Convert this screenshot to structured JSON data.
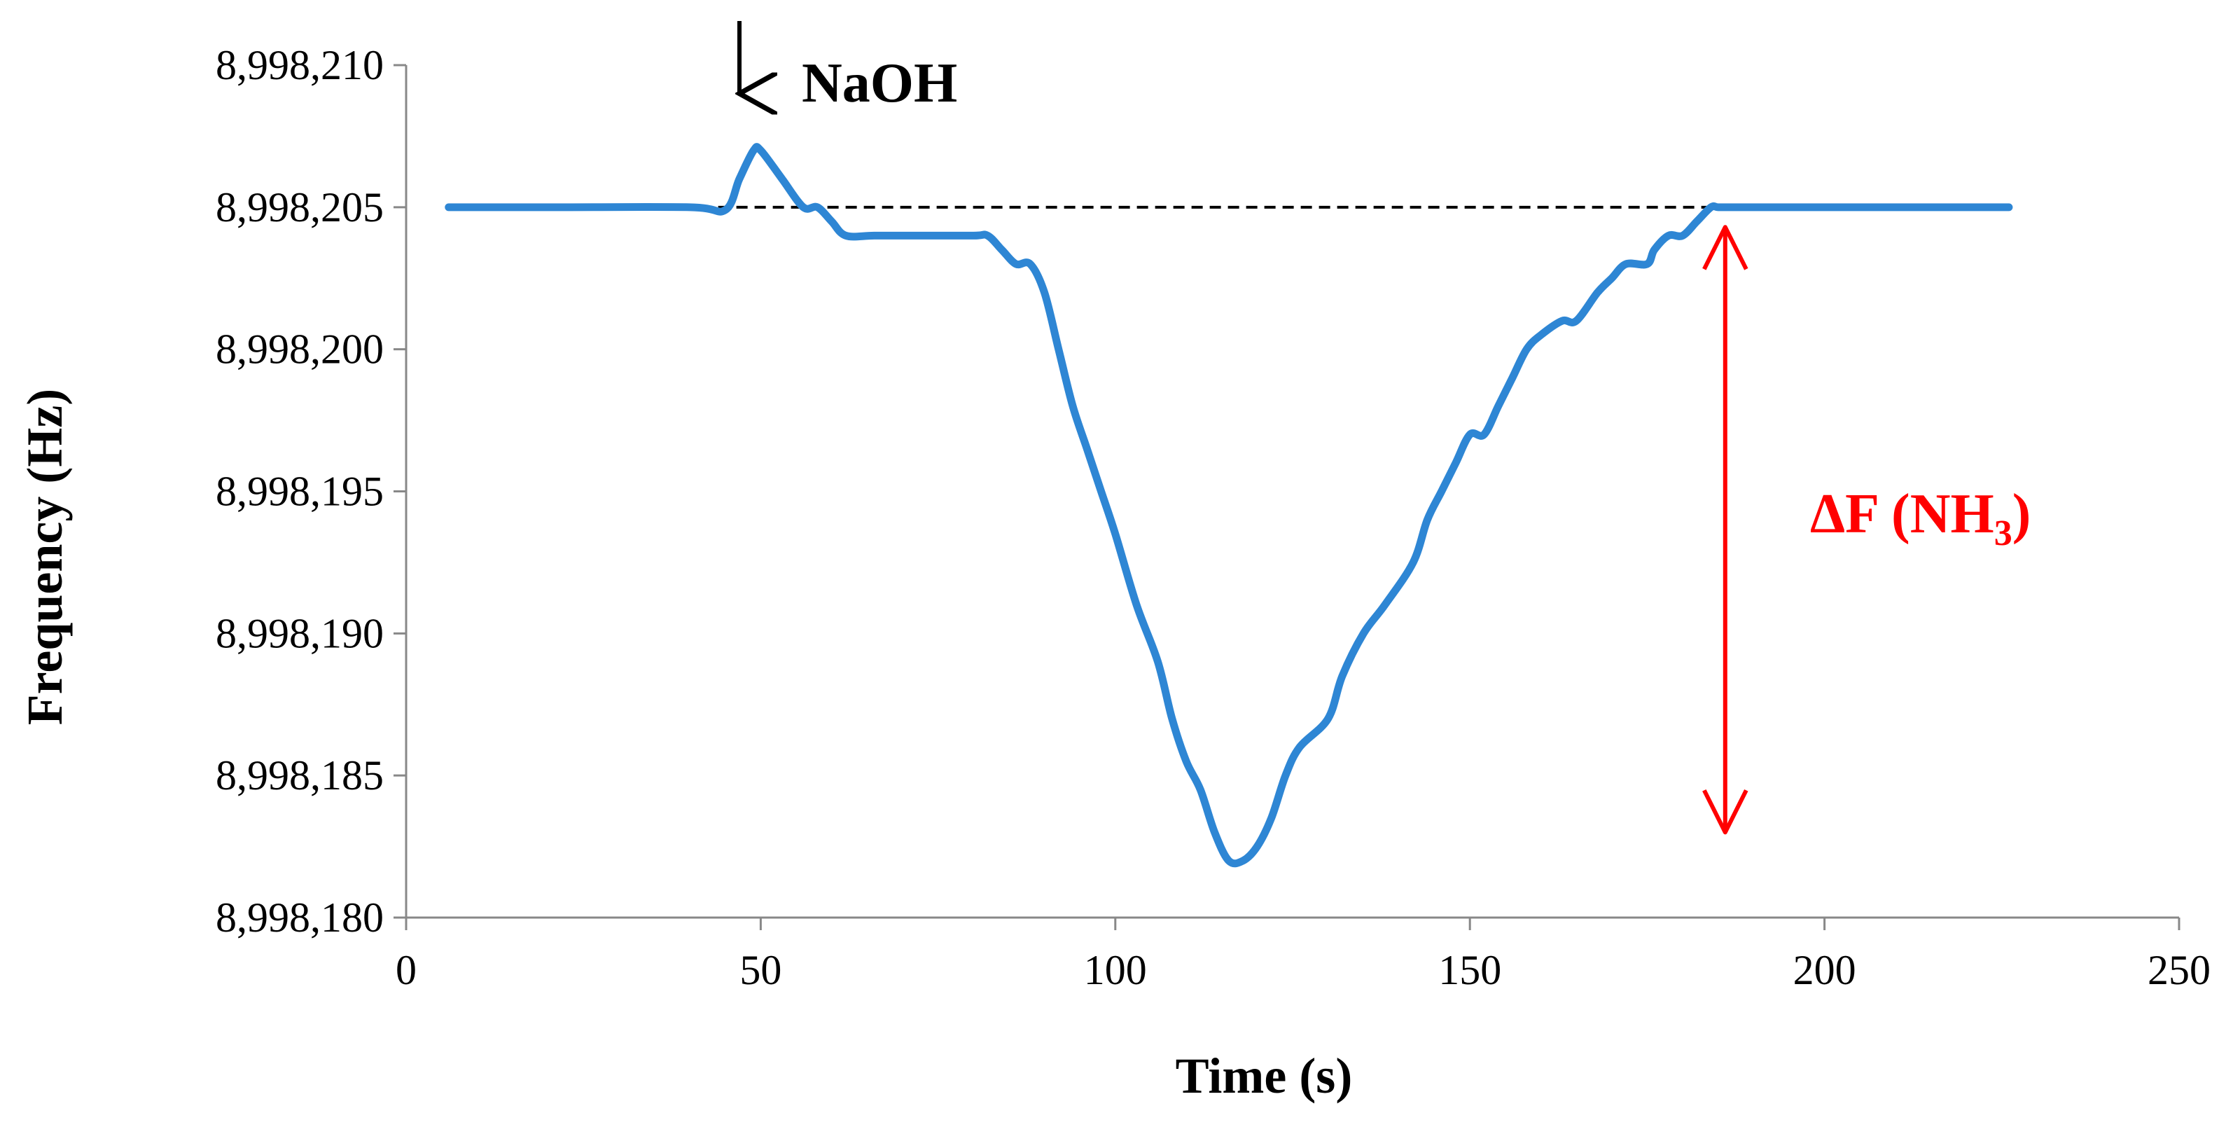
{
  "chart_data": {
    "type": "line",
    "title": "",
    "xlabel": "Time (s)",
    "ylabel": "Frequency (Hz)",
    "xlim": [
      0,
      250
    ],
    "ylim": [
      8998180,
      8998210
    ],
    "x_ticks": [
      0,
      50,
      100,
      150,
      200,
      250
    ],
    "x_tick_labels": [
      "0",
      "50",
      "100",
      "150",
      "200",
      "250"
    ],
    "y_ticks": [
      8998180,
      8998185,
      8998190,
      8998195,
      8998200,
      8998205,
      8998210
    ],
    "y_tick_labels": [
      "8,998,180",
      "8,998,185",
      "8,998,190",
      "8,998,195",
      "8,998,200",
      "8,998,205",
      "8,998,210"
    ],
    "grid": false,
    "legend": "none",
    "series": [
      {
        "color": "#2e86d4",
        "x": [
          6,
          20,
          40,
          45,
          47,
          49,
          50,
          53,
          56,
          58,
          60,
          62,
          66,
          72,
          80,
          82,
          84,
          86,
          88,
          90,
          92,
          94,
          96,
          98,
          100,
          103,
          106,
          108,
          110,
          112,
          114,
          116,
          118,
          120,
          122,
          124,
          126,
          130,
          132,
          135,
          138,
          142,
          144,
          146,
          148,
          150,
          152,
          154,
          156,
          158,
          160,
          163,
          165,
          168,
          170,
          172,
          175,
          176,
          178,
          180,
          182,
          184,
          185,
          187,
          190,
          200,
          210,
          226
        ],
        "y": [
          8998205,
          8998205,
          8998205,
          8998204.9,
          8998206,
          8998207,
          8998207,
          8998206,
          8998205,
          8998205,
          8998204.5,
          8998204,
          8998204,
          8998204,
          8998204,
          8998204,
          8998203.5,
          8998203,
          8998203,
          8998202,
          8998200,
          8998198,
          8998196.5,
          8998195,
          8998193.5,
          8998191,
          8998189,
          8998187,
          8998185.5,
          8998184.5,
          8998183,
          8998182,
          8998182,
          8998182.5,
          8998183.5,
          8998185,
          8998186,
          8998187,
          8998188.5,
          8998190,
          8998191,
          8998192.5,
          8998194,
          8998195,
          8998196,
          8998197,
          8998197,
          8998198,
          8998199,
          8998200,
          8998200.5,
          8998201,
          8998201,
          8998202,
          8998202.5,
          8998203,
          8998203,
          8998203.5,
          8998204,
          8998204,
          8998204.5,
          8998205,
          8998205,
          8998205,
          8998205,
          8998205,
          8998205,
          8998205
        ]
      }
    ],
    "reference_line": {
      "y": 8998205,
      "x": [
        44,
        190
      ],
      "style": "dashed",
      "color": "#000000"
    },
    "annotations": [
      {
        "text": "NaOH",
        "color": "#000000",
        "arrow": "down",
        "x": 47,
        "y": 8998209
      },
      {
        "text": "ΔF (NH",
        "subscript": "3",
        "suffix": ")",
        "color": "#ff0000",
        "arrow": "double-vertical",
        "x": 186,
        "y_from": 8998204.3,
        "y_to": 8998183
      }
    ]
  }
}
